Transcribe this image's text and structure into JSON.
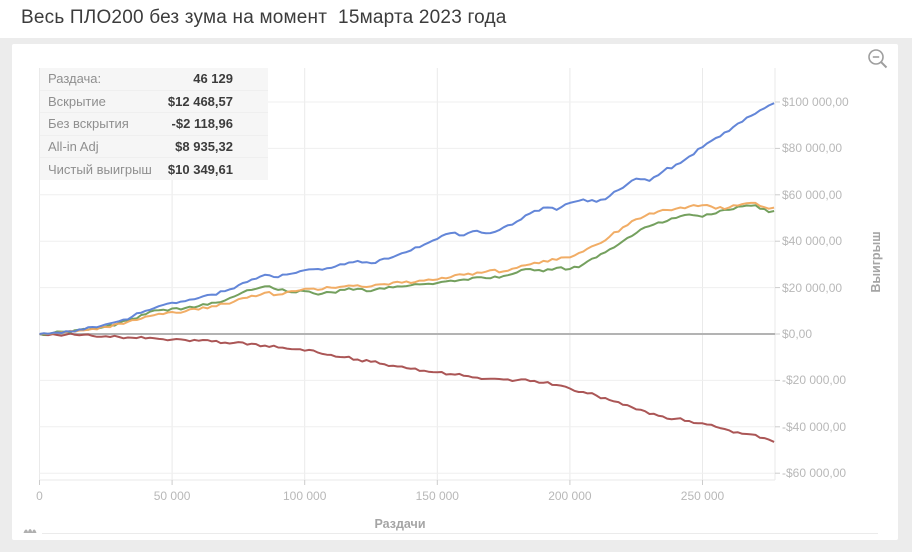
{
  "page": {
    "title": "Весь ПЛО200 без зума на момент  15марта 2023 года"
  },
  "toolbar": {
    "zoom_out_icon": "magnifier-with-minus"
  },
  "stats_panel": {
    "rows": [
      {
        "label": "Раздача:",
        "value": "46 129"
      },
      {
        "label": "Вскрытие",
        "value": "$12 468,57"
      },
      {
        "label": "Без вскрытия",
        "value": "-$2 118,96"
      },
      {
        "label": "All-in Adj",
        "value": "$8 935,32"
      },
      {
        "label": "Чистый выигрыш",
        "value": "$10 349,61"
      }
    ]
  },
  "colors": {
    "page_background": "#ececec",
    "card_background": "#ffffff",
    "gridline": "#eaeaea",
    "zero_line": "#b3b3b3",
    "tick_mark": "#cccccc",
    "tick_text": "#b8b8b8",
    "axis_title_text": "#a5a5a5",
    "series_showdown": "#5b7fd6",
    "series_non_showdown": "#a64d4d",
    "series_allin_adj": "#f0a95e",
    "series_net_won": "#6d9b55"
  },
  "chart_data": {
    "type": "line",
    "title": "",
    "xlabel": "Раздачи",
    "ylabel": "Выигрыш",
    "xlim": [
      0,
      277000
    ],
    "ylim": [
      -62000,
      114000
    ],
    "grid": true,
    "zero_line": true,
    "legend_position": "none",
    "x_ticks": [
      {
        "v": 0,
        "label": "0"
      },
      {
        "v": 50000,
        "label": "50 000"
      },
      {
        "v": 100000,
        "label": "100 000"
      },
      {
        "v": 150000,
        "label": "150 000"
      },
      {
        "v": 200000,
        "label": "200 000"
      },
      {
        "v": 250000,
        "label": "250 000"
      }
    ],
    "y_ticks": [
      {
        "v": 100000,
        "label": "$100 000,00"
      },
      {
        "v": 80000,
        "label": "$80 000,00"
      },
      {
        "v": 60000,
        "label": "$60 000,00"
      },
      {
        "v": 40000,
        "label": "$40 000,00"
      },
      {
        "v": 20000,
        "label": "$20 000,00"
      },
      {
        "v": 0,
        "label": "$0,00"
      },
      {
        "v": -20000,
        "label": "-$20 000,00"
      },
      {
        "v": -40000,
        "label": "-$40 000,00"
      },
      {
        "v": -60000,
        "label": "-$60 000,00"
      }
    ],
    "x": [
      0,
      5000,
      10000,
      15000,
      20000,
      25000,
      30000,
      35000,
      40000,
      45000,
      50000,
      55000,
      60000,
      65000,
      70000,
      75000,
      80000,
      85000,
      90000,
      95000,
      100000,
      105000,
      110000,
      115000,
      120000,
      125000,
      130000,
      135000,
      140000,
      145000,
      150000,
      155000,
      160000,
      165000,
      170000,
      175000,
      180000,
      185000,
      190000,
      195000,
      200000,
      205000,
      210000,
      215000,
      220000,
      225000,
      230000,
      235000,
      240000,
      245000,
      250000,
      255000,
      260000,
      265000,
      270000,
      275000,
      277000
    ],
    "series": [
      {
        "name": "Без вскрытия",
        "color": "#a64d4d",
        "values": [
          0,
          -100,
          -300,
          -500,
          -800,
          -1000,
          -1300,
          -1600,
          -1900,
          -2100,
          -2400,
          -2600,
          -2900,
          -3200,
          -3700,
          -3500,
          -4200,
          -5000,
          -5800,
          -6500,
          -7200,
          -8000,
          -9000,
          -10000,
          -11000,
          -12000,
          -13000,
          -14000,
          -15000,
          -15800,
          -16500,
          -17300,
          -18000,
          -18800,
          -19300,
          -19600,
          -19900,
          -20300,
          -21000,
          -22000,
          -23500,
          -25000,
          -26500,
          -28500,
          -30500,
          -32500,
          -34500,
          -35500,
          -36500,
          -37500,
          -38500,
          -40000,
          -41500,
          -43000,
          -43500,
          -45500,
          -46500
        ]
      },
      {
        "name": "Чистый выигрыш",
        "color": "#6d9b55",
        "values": [
          0,
          400,
          1000,
          1800,
          2500,
          3200,
          4800,
          6500,
          8500,
          10200,
          11000,
          11200,
          12000,
          13500,
          14500,
          17000,
          19000,
          20500,
          19000,
          18000,
          18500,
          17000,
          18000,
          19000,
          19500,
          18500,
          19500,
          20500,
          21000,
          21500,
          22000,
          23000,
          23500,
          24500,
          24000,
          25000,
          26500,
          28000,
          27000,
          28500,
          28000,
          30000,
          33000,
          36500,
          40000,
          43500,
          46500,
          48000,
          50000,
          51500,
          50500,
          52000,
          53500,
          55000,
          55500,
          52500,
          53000
        ]
      },
      {
        "name": "All-in Adj",
        "color": "#f0a95e",
        "values": [
          0,
          300,
          800,
          1500,
          2200,
          3000,
          4500,
          6000,
          7500,
          8700,
          9500,
          9800,
          10500,
          12000,
          13000,
          15000,
          16500,
          17800,
          17000,
          18500,
          19500,
          19000,
          20000,
          20500,
          21000,
          20500,
          21500,
          22500,
          22000,
          23000,
          23500,
          24500,
          25500,
          26500,
          27500,
          27000,
          28500,
          30000,
          31500,
          32000,
          33000,
          35500,
          38500,
          42000,
          46000,
          49500,
          52000,
          53500,
          54000,
          55000,
          55500,
          54000,
          54500,
          56000,
          56500,
          54000,
          54500
        ]
      },
      {
        "name": "Вскрытие",
        "color": "#5b7fd6",
        "values": [
          0,
          500,
          1200,
          2000,
          3000,
          4200,
          5500,
          7500,
          10000,
          12000,
          13500,
          14200,
          15500,
          17000,
          18500,
          21000,
          23500,
          25500,
          24500,
          26000,
          27500,
          28000,
          28500,
          30000,
          31500,
          30500,
          32500,
          34000,
          36000,
          38500,
          41000,
          43500,
          42500,
          44500,
          43500,
          46000,
          48500,
          52000,
          54500,
          53500,
          56500,
          58000,
          57000,
          59500,
          63000,
          67000,
          66000,
          70000,
          73000,
          76500,
          80500,
          84500,
          87500,
          91500,
          95000,
          98500,
          99500
        ]
      }
    ]
  }
}
